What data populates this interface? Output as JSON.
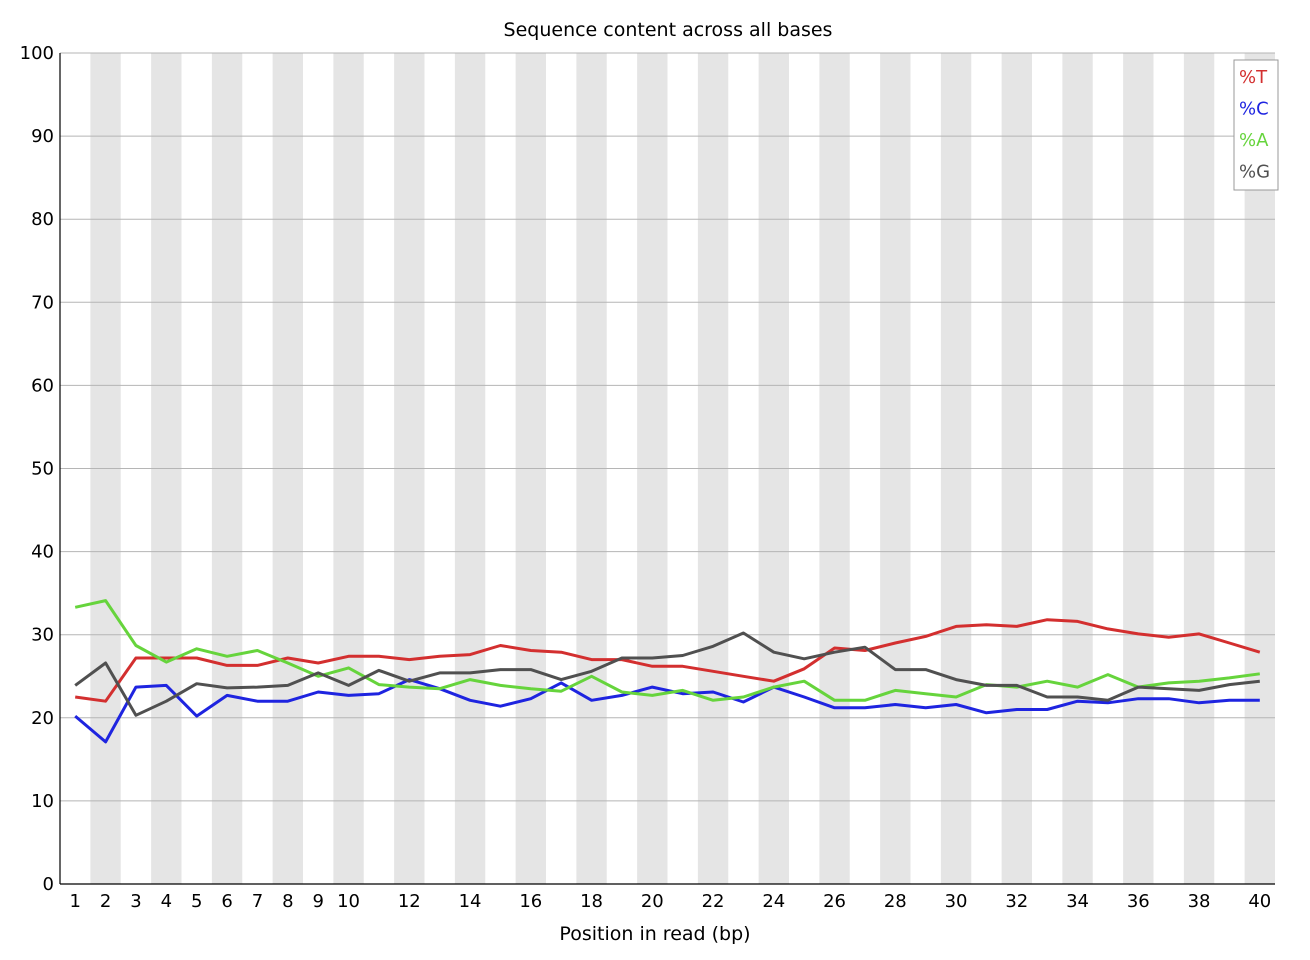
{
  "chart_data": {
    "type": "line",
    "title": "Sequence content across all bases",
    "xlabel": "Position in read (bp)",
    "ylabel": "",
    "ylim": [
      0,
      100
    ],
    "yticks": [
      "0",
      "10",
      "20",
      "30",
      "40",
      "50",
      "60",
      "70",
      "80",
      "90",
      "100"
    ],
    "x": [
      1,
      2,
      3,
      4,
      5,
      6,
      7,
      8,
      9,
      10,
      11,
      12,
      13,
      14,
      15,
      16,
      17,
      18,
      19,
      20,
      21,
      22,
      23,
      24,
      25,
      26,
      27,
      28,
      29,
      30,
      31,
      32,
      33,
      34,
      35,
      36,
      37,
      38,
      39,
      40
    ],
    "xtick_labels": [
      "1",
      "2",
      "3",
      "4",
      "5",
      "6",
      "7",
      "8",
      "9",
      "10",
      "",
      "12",
      "",
      "14",
      "",
      "16",
      "",
      "18",
      "",
      "20",
      "",
      "22",
      "",
      "24",
      "",
      "26",
      "",
      "28",
      "",
      "30",
      "",
      "32",
      "",
      "34",
      "",
      "36",
      "",
      "38",
      "",
      "40"
    ],
    "grid": true,
    "shaded_alternate_positions": true,
    "legend_position": "top-right",
    "series": [
      {
        "name": "%T",
        "color": "#d32f2f",
        "values": [
          22.5,
          22.0,
          27.2,
          27.2,
          27.2,
          26.3,
          26.3,
          27.2,
          26.6,
          27.4,
          27.4,
          27.0,
          27.4,
          27.6,
          28.7,
          28.1,
          27.9,
          27.0,
          27.0,
          26.2,
          26.2,
          25.6,
          25.0,
          24.4,
          25.9,
          28.4,
          28.1,
          29.0,
          29.8,
          31.0,
          31.2,
          31.0,
          31.8,
          31.6,
          30.7,
          30.1,
          29.7,
          30.1,
          29.0,
          27.9
        ]
      },
      {
        "name": "%C",
        "color": "#1e24e0",
        "values": [
          20.2,
          17.1,
          23.7,
          23.9,
          20.2,
          22.7,
          22.0,
          22.0,
          23.1,
          22.7,
          22.9,
          24.6,
          23.5,
          22.1,
          21.4,
          22.3,
          24.2,
          22.1,
          22.7,
          23.7,
          22.9,
          23.1,
          21.9,
          23.7,
          22.5,
          21.2,
          21.2,
          21.6,
          21.2,
          21.6,
          20.6,
          21.0,
          21.0,
          22.0,
          21.8,
          22.3,
          22.3,
          21.8,
          22.1,
          22.1
        ]
      },
      {
        "name": "%A",
        "color": "#66d43c",
        "values": [
          33.3,
          34.1,
          28.7,
          26.7,
          28.3,
          27.4,
          28.1,
          26.6,
          25.0,
          26.0,
          24.0,
          23.7,
          23.5,
          24.6,
          23.9,
          23.5,
          23.2,
          25.0,
          23.1,
          22.7,
          23.3,
          22.1,
          22.5,
          23.7,
          24.4,
          22.1,
          22.1,
          23.3,
          22.9,
          22.5,
          24.0,
          23.7,
          24.4,
          23.7,
          25.2,
          23.7,
          24.2,
          24.4,
          24.8,
          25.3
        ]
      },
      {
        "name": "%G",
        "color": "#505050",
        "values": [
          23.9,
          26.6,
          20.3,
          22.0,
          24.1,
          23.6,
          23.7,
          23.9,
          25.4,
          23.9,
          25.7,
          24.4,
          25.4,
          25.4,
          25.8,
          25.8,
          24.6,
          25.6,
          27.2,
          27.2,
          27.5,
          28.6,
          30.2,
          27.9,
          27.1,
          27.9,
          28.5,
          25.8,
          25.8,
          24.6,
          23.9,
          23.9,
          22.5,
          22.5,
          22.1,
          23.7,
          23.5,
          23.3,
          24.0,
          24.4
        ]
      }
    ]
  }
}
